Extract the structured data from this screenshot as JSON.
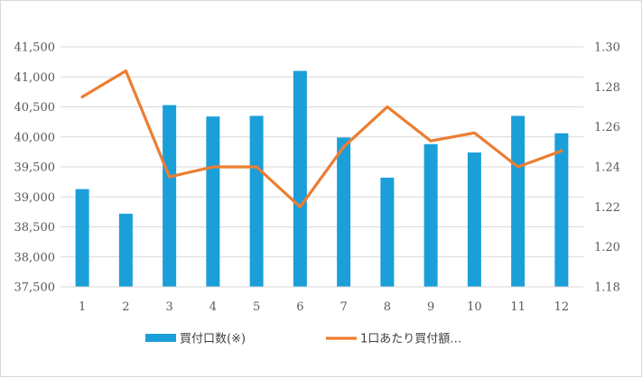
{
  "chart_data": {
    "type": "bar",
    "categories": [
      "1",
      "2",
      "3",
      "4",
      "5",
      "6",
      "7",
      "8",
      "9",
      "10",
      "11",
      "12"
    ],
    "series": [
      {
        "name": "買付口数(※)",
        "type": "bar",
        "axis": "left",
        "color": "#1a9fd9",
        "values": [
          39130,
          38720,
          40530,
          40340,
          40350,
          41100,
          39990,
          39320,
          39880,
          39740,
          40350,
          40060
        ]
      },
      {
        "name": "1口あたり買付額…",
        "type": "line",
        "axis": "right",
        "color": "#ed7d31",
        "values": [
          1.275,
          1.288,
          1.235,
          1.24,
          1.24,
          1.22,
          1.25,
          1.27,
          1.253,
          1.257,
          1.24,
          1.248
        ]
      }
    ],
    "y_left": {
      "min": 37500,
      "max": 41500,
      "step": 500,
      "ticks": [
        "37,500",
        "38,000",
        "38,500",
        "39,000",
        "39,500",
        "40,000",
        "40,500",
        "41,000",
        "41,500"
      ]
    },
    "y_right": {
      "min": 1.18,
      "max": 1.3,
      "step": 0.02,
      "ticks": [
        "1.18",
        "1.20",
        "1.22",
        "1.24",
        "1.26",
        "1.28",
        "1.30"
      ]
    },
    "grid": true,
    "legend": "bottom"
  }
}
